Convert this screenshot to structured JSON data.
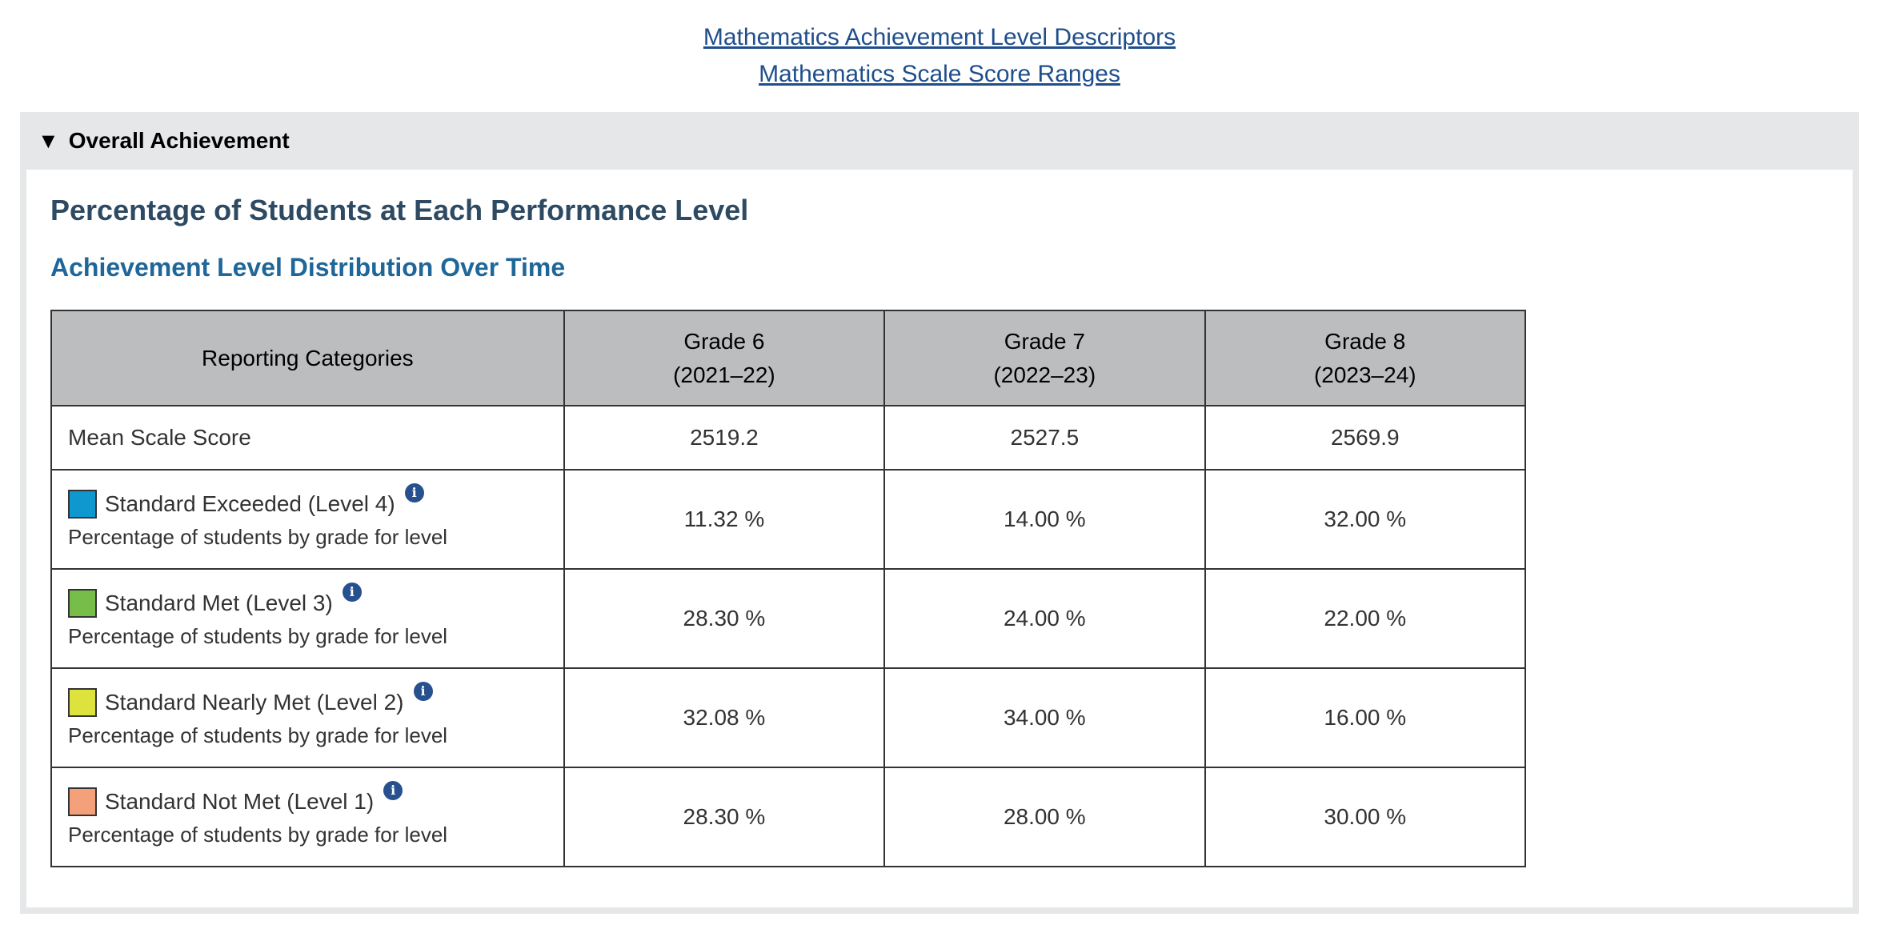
{
  "links": {
    "descriptors": "Mathematics Achievement Level Descriptors",
    "scale_ranges": "Mathematics Scale Score Ranges"
  },
  "panel": {
    "toggle_icon": "▼",
    "title": "Overall Achievement"
  },
  "content": {
    "heading": "Percentage of Students at Each Performance Level",
    "subheading": "Achievement Level Distribution Over Time"
  },
  "table": {
    "header_category": "Reporting Categories",
    "columns": [
      {
        "grade": "Grade 6",
        "year": "(2021–22)"
      },
      {
        "grade": "Grade 7",
        "year": "(2022–23)"
      },
      {
        "grade": "Grade 8",
        "year": "(2023–24)"
      }
    ],
    "mean_row": {
      "label": "Mean Scale Score",
      "values": [
        "2519.2",
        "2527.5",
        "2569.9"
      ]
    },
    "level_rows": [
      {
        "label": "Standard Exceeded (Level 4)",
        "sublabel": "Percentage of students by grade for level",
        "color": "#0f97cf",
        "values": [
          "11.32 %",
          "14.00 %",
          "32.00 %"
        ]
      },
      {
        "label": "Standard Met (Level 3)",
        "sublabel": "Percentage of students by grade for level",
        "color": "#76bd4a",
        "values": [
          "28.30 %",
          "24.00 %",
          "22.00 %"
        ]
      },
      {
        "label": "Standard Nearly Met (Level 2)",
        "sublabel": "Percentage of students by grade for level",
        "color": "#dde33c",
        "values": [
          "32.08 %",
          "34.00 %",
          "16.00 %"
        ]
      },
      {
        "label": "Standard Not Met (Level 1)",
        "sublabel": "Percentage of students by grade for level",
        "color": "#f4a07a",
        "values": [
          "28.30 %",
          "28.00 %",
          "30.00 %"
        ]
      }
    ],
    "info_icon": "i"
  }
}
